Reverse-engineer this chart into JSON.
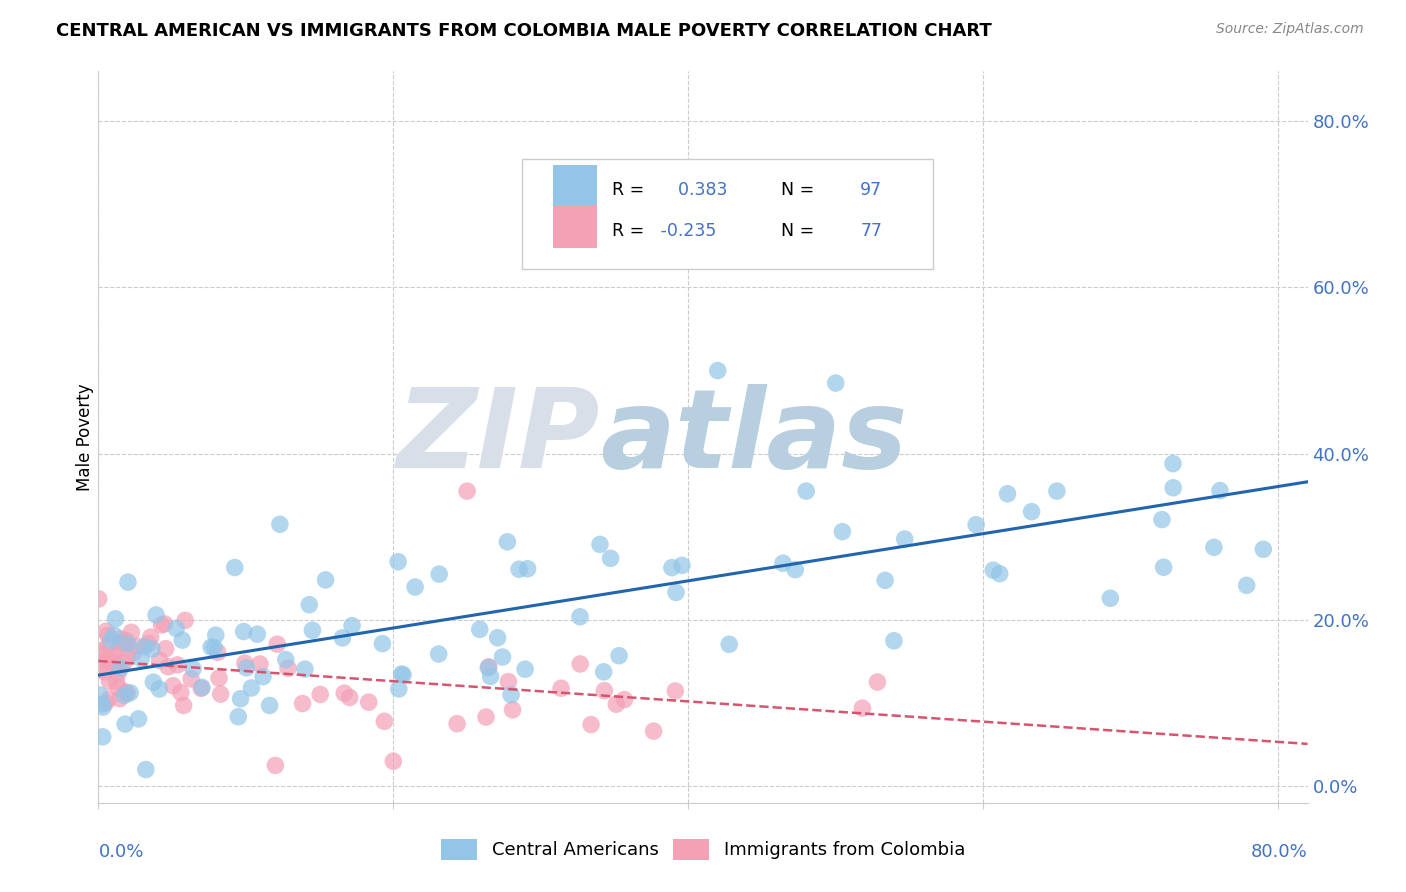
{
  "title": "CENTRAL AMERICAN VS IMMIGRANTS FROM COLOMBIA MALE POVERTY CORRELATION CHART",
  "source": "Source: ZipAtlas.com",
  "ylabel": "Male Poverty",
  "blue_label": "Central Americans",
  "pink_label": "Immigrants from Colombia",
  "blue_R": 0.383,
  "blue_N": 97,
  "pink_R": -0.235,
  "pink_N": 77,
  "blue_color": "#92c5e8",
  "blue_line_color": "#2166ac",
  "pink_color": "#f4a0b5",
  "pink_line_color": "#d6546e",
  "xlim": [
    0.0,
    0.82
  ],
  "ylim": [
    -0.02,
    0.86
  ],
  "y_ticks": [
    0.0,
    0.2,
    0.4,
    0.6,
    0.8
  ],
  "x_ticks": [
    0.0,
    0.2,
    0.4,
    0.6,
    0.8
  ],
  "watermark_zip": "ZIP",
  "watermark_atlas": "atlas",
  "watermark_zip_color": "#d8dfe8",
  "watermark_atlas_color": "#b8cfe0",
  "grid_color": "#cccccc",
  "background_color": "#ffffff",
  "tick_label_color": "#4472c4",
  "title_color": "#000000",
  "source_color": "#888888"
}
